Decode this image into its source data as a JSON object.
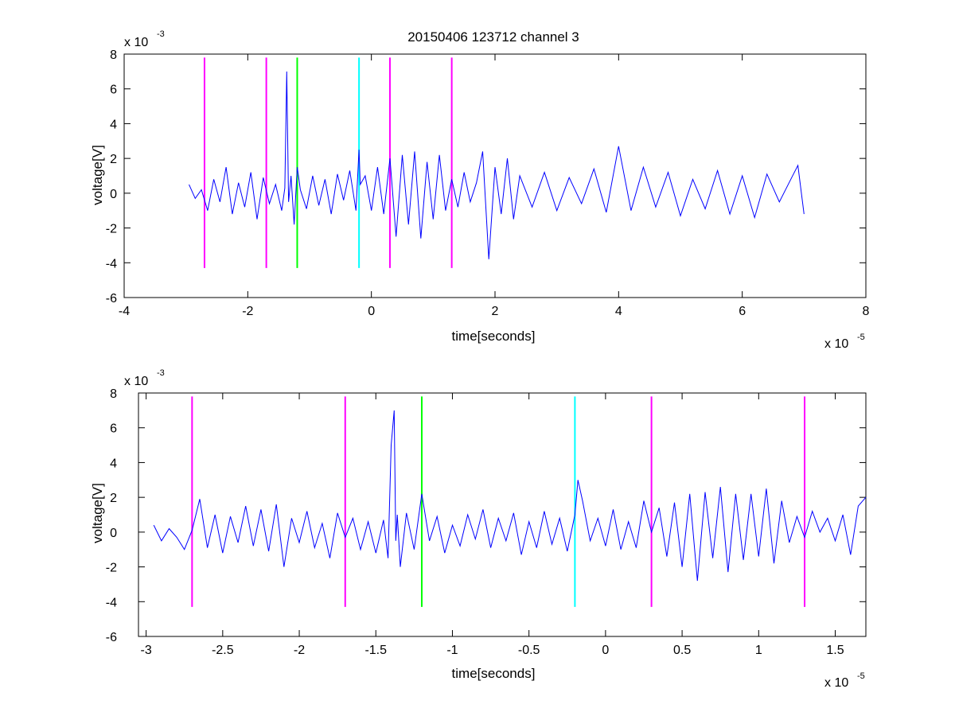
{
  "figure": {
    "title": "20150406 123712 channel 3"
  },
  "colors": {
    "signal": "#0000ff",
    "marker_magenta": "#ff00ff",
    "marker_green": "#00ff00",
    "marker_cyan": "#00ffff",
    "axes": "#000000",
    "background": "#ffffff"
  },
  "chart_data": [
    {
      "type": "line",
      "title": "20150406 123712 channel 3",
      "xlabel": "time[seconds]",
      "ylabel": "voltage[V]",
      "x_multiplier": "x 10",
      "x_multiplier_exp": "-5",
      "y_multiplier": "x 10",
      "y_multiplier_exp": "-3",
      "xlim": [
        -4,
        8
      ],
      "ylim": [
        -6,
        8
      ],
      "x_ticks": [
        "-4",
        "-2",
        "0",
        "2",
        "4",
        "6",
        "8"
      ],
      "x_tick_values": [
        -4,
        -2,
        0,
        2,
        4,
        6,
        8
      ],
      "y_ticks": [
        "-6",
        "-4",
        "-2",
        "0",
        "2",
        "4",
        "6",
        "8"
      ],
      "y_tick_values": [
        -6,
        -4,
        -2,
        0,
        2,
        4,
        6,
        8
      ],
      "grid": false,
      "series": [
        {
          "color": "#0000ff",
          "x": [
            -2.95,
            -2.85,
            -2.75,
            -2.65,
            -2.55,
            -2.45,
            -2.35,
            -2.25,
            -2.15,
            -2.05,
            -1.95,
            -1.85,
            -1.75,
            -1.65,
            -1.55,
            -1.45,
            -1.4,
            -1.37,
            -1.34,
            -1.3,
            -1.25,
            -1.2,
            -1.15,
            -1.05,
            -0.95,
            -0.85,
            -0.75,
            -0.65,
            -0.55,
            -0.45,
            -0.35,
            -0.25,
            -0.2,
            -0.18,
            -0.1,
            0.0,
            0.1,
            0.2,
            0.3,
            0.4,
            0.5,
            0.6,
            0.7,
            0.8,
            0.9,
            1.0,
            1.1,
            1.2,
            1.3,
            1.4,
            1.5,
            1.6,
            1.7,
            1.8,
            1.9,
            2.0,
            2.1,
            2.2,
            2.3,
            2.4,
            2.6,
            2.8,
            3.0,
            3.2,
            3.4,
            3.6,
            3.8,
            4.0,
            4.2,
            4.4,
            4.6,
            4.8,
            5.0,
            5.2,
            5.4,
            5.6,
            5.8,
            6.0,
            6.2,
            6.4,
            6.6,
            6.8,
            6.9,
            7.0
          ],
          "y": [
            0.5,
            -0.3,
            0.2,
            -1.0,
            0.8,
            -0.5,
            1.5,
            -1.2,
            0.6,
            -0.8,
            1.2,
            -1.5,
            0.9,
            -0.6,
            0.5,
            -1.0,
            0.3,
            7.0,
            -0.5,
            1.0,
            -1.8,
            1.5,
            0.2,
            -0.9,
            1.0,
            -0.7,
            0.8,
            -1.2,
            1.1,
            -0.4,
            1.3,
            -1.0,
            2.5,
            0.5,
            1.0,
            -1.0,
            1.5,
            -1.2,
            2.0,
            -2.5,
            2.2,
            -1.8,
            2.4,
            -2.6,
            1.8,
            -1.5,
            2.2,
            -1.0,
            0.8,
            -0.8,
            1.2,
            -0.5,
            0.6,
            2.4,
            -3.8,
            1.5,
            -1.2,
            2.0,
            -1.5,
            1.0,
            -0.8,
            1.2,
            -1.0,
            0.9,
            -0.6,
            1.4,
            -1.1,
            2.7,
            -1.0,
            1.5,
            -0.8,
            1.2,
            -1.3,
            0.8,
            -0.9,
            1.3,
            -1.2,
            1.0,
            -1.4,
            1.1,
            -0.5,
            0.9,
            1.6,
            -1.2
          ]
        }
      ],
      "markers": [
        {
          "x": -2.7,
          "color": "#ff00ff"
        },
        {
          "x": -1.7,
          "color": "#ff00ff"
        },
        {
          "x": -1.2,
          "color": "#00ff00"
        },
        {
          "x": -0.2,
          "color": "#00ffff"
        },
        {
          "x": 0.3,
          "color": "#ff00ff"
        },
        {
          "x": 1.3,
          "color": "#ff00ff"
        }
      ],
      "marker_range": [
        -4.3,
        7.8
      ]
    },
    {
      "type": "line",
      "title": "",
      "xlabel": "time[seconds]",
      "ylabel": "voltage[V]",
      "x_multiplier": "x 10",
      "x_multiplier_exp": "-5",
      "y_multiplier": "x 10",
      "y_multiplier_exp": "-3",
      "xlim": [
        -3.05,
        1.7
      ],
      "ylim": [
        -6,
        8
      ],
      "x_ticks": [
        "-3",
        "-2.5",
        "-2",
        "-1.5",
        "-1",
        "-0.5",
        "0",
        "0.5",
        "1",
        "1.5"
      ],
      "x_tick_values": [
        -3,
        -2.5,
        -2,
        -1.5,
        -1,
        -0.5,
        0,
        0.5,
        1,
        1.5
      ],
      "y_ticks": [
        "-6",
        "-4",
        "-2",
        "0",
        "2",
        "4",
        "6",
        "8"
      ],
      "y_tick_values": [
        -6,
        -4,
        -2,
        0,
        2,
        4,
        6,
        8
      ],
      "grid": false,
      "series": [
        {
          "color": "#0000ff",
          "x": [
            -2.95,
            -2.9,
            -2.85,
            -2.8,
            -2.75,
            -2.7,
            -2.65,
            -2.6,
            -2.55,
            -2.5,
            -2.45,
            -2.4,
            -2.35,
            -2.3,
            -2.25,
            -2.2,
            -2.15,
            -2.1,
            -2.05,
            -2.0,
            -1.95,
            -1.9,
            -1.85,
            -1.8,
            -1.75,
            -1.7,
            -1.65,
            -1.6,
            -1.55,
            -1.5,
            -1.45,
            -1.42,
            -1.4,
            -1.38,
            -1.37,
            -1.36,
            -1.34,
            -1.3,
            -1.25,
            -1.2,
            -1.15,
            -1.1,
            -1.05,
            -1.0,
            -0.95,
            -0.9,
            -0.85,
            -0.8,
            -0.75,
            -0.7,
            -0.65,
            -0.6,
            -0.55,
            -0.5,
            -0.45,
            -0.4,
            -0.35,
            -0.3,
            -0.25,
            -0.2,
            -0.18,
            -0.15,
            -0.1,
            -0.05,
            0.0,
            0.05,
            0.1,
            0.15,
            0.2,
            0.25,
            0.3,
            0.35,
            0.4,
            0.45,
            0.5,
            0.55,
            0.6,
            0.65,
            0.7,
            0.75,
            0.8,
            0.85,
            0.9,
            0.95,
            1.0,
            1.05,
            1.1,
            1.15,
            1.2,
            1.25,
            1.3,
            1.35,
            1.4,
            1.45,
            1.5,
            1.55,
            1.6,
            1.65,
            1.7
          ],
          "y": [
            0.4,
            -0.5,
            0.2,
            -0.3,
            -1.0,
            0.1,
            1.9,
            -0.9,
            1.0,
            -1.2,
            0.9,
            -0.6,
            1.5,
            -0.8,
            1.3,
            -1.1,
            1.6,
            -2.0,
            0.8,
            -0.6,
            1.2,
            -0.9,
            0.5,
            -1.5,
            1.1,
            -0.3,
            0.8,
            -1.0,
            0.6,
            -1.2,
            0.7,
            -1.5,
            5.0,
            7.0,
            -0.5,
            1.0,
            -2.0,
            1.1,
            -1.0,
            2.2,
            -0.5,
            0.9,
            -1.2,
            0.4,
            -0.8,
            1.0,
            -0.4,
            1.3,
            -0.9,
            0.8,
            -0.5,
            1.1,
            -1.3,
            0.6,
            -0.9,
            1.2,
            -0.7,
            0.8,
            -1.1,
            1.0,
            3.0,
            1.8,
            -0.5,
            0.8,
            -0.8,
            1.3,
            -1.0,
            0.6,
            -0.9,
            1.8,
            0.0,
            1.4,
            -1.4,
            1.7,
            -2.0,
            2.2,
            -2.8,
            2.3,
            -1.5,
            2.6,
            -2.3,
            2.2,
            -1.6,
            2.2,
            -1.4,
            2.5,
            -1.8,
            1.8,
            -0.6,
            0.9,
            -0.3,
            1.2,
            0.0,
            0.8,
            -0.5,
            1.0,
            -1.3,
            1.5,
            2.0
          ]
        }
      ],
      "markers": [
        {
          "x": -2.7,
          "color": "#ff00ff"
        },
        {
          "x": -1.7,
          "color": "#ff00ff"
        },
        {
          "x": -1.2,
          "color": "#00ff00"
        },
        {
          "x": -0.2,
          "color": "#00ffff"
        },
        {
          "x": 0.3,
          "color": "#ff00ff"
        },
        {
          "x": 1.3,
          "color": "#ff00ff"
        }
      ],
      "marker_range": [
        -4.3,
        7.8
      ]
    }
  ]
}
